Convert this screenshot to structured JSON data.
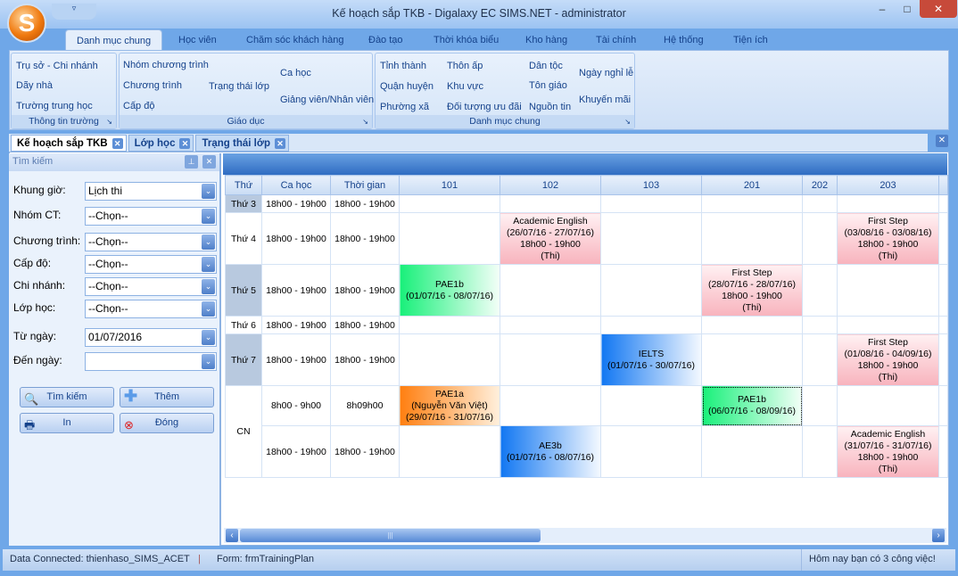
{
  "window": {
    "title": "Kế hoạch sắp TKB - Digalaxy EC SIMS.NET - administrator",
    "logo_letter": "S",
    "qat_icon": "▿",
    "min": "–",
    "max": "□",
    "close": "✕"
  },
  "ribbon_tabs": [
    "Danh mục chung",
    "Học viên",
    "Chăm sóc khách hàng",
    "Đào tạo",
    "Thời khóa biểu",
    "Kho hàng",
    "Tài chính",
    "Hệ thống",
    "Tiện ích"
  ],
  "ribbon_groups": {
    "thong_tin_truong": {
      "label": "Thông tin trường",
      "items": [
        "Trụ sở - Chi nhánh",
        "Dãy nhà",
        "Trường trung học"
      ]
    },
    "giao_duc": {
      "label": "Giáo dục",
      "items": [
        "Nhóm chương trình",
        "Chương trình",
        "Cấp độ",
        "Trạng thái lớp",
        "Ca học",
        "Giảng viên/Nhân viên"
      ]
    },
    "danh_muc_chung": {
      "label": "Danh mục chung",
      "items": [
        "Tỉnh thành",
        "Quận huyện",
        "Phường xã",
        "Thôn ấp",
        "Khu vực",
        "Đối tượng ưu đãi",
        "Dân tộc",
        "Tôn giáo",
        "Nguồn tin",
        "Ngày nghỉ lễ",
        "Khuyến mãi"
      ]
    }
  },
  "doc_tabs": [
    "Kế hoạch sắp TKB",
    "Lớp học",
    "Trạng thái lớp"
  ],
  "search": {
    "title": "Tìm kiếm",
    "fields": [
      {
        "label": "Khung giờ:",
        "value": "Lịch thi"
      },
      {
        "label": "Nhóm CT:",
        "value": "--Chọn--"
      },
      {
        "label": "Chương trình:",
        "value": "--Chọn--"
      },
      {
        "label": "Cấp độ:",
        "value": "--Chọn--"
      },
      {
        "label": "Chi nhánh:",
        "value": "--Chọn--"
      },
      {
        "label": "Lớp học:",
        "value": "--Chọn--"
      },
      {
        "label": "Từ ngày:",
        "value": "01/07/2016"
      },
      {
        "label": "Đến  ngày:",
        "value": ""
      }
    ],
    "buttons": {
      "search": "Tìm kiếm",
      "add": "Thêm",
      "print": "In",
      "close": "Đóng"
    }
  },
  "grid": {
    "columns": [
      "Thứ",
      "Ca học",
      "Thời gian",
      "101",
      "102",
      "103",
      "201",
      "202",
      "203"
    ],
    "rooms": [
      "101",
      "102",
      "103",
      "201",
      "202",
      "203"
    ],
    "rows": [
      {
        "day": "Thứ 3",
        "shade": true,
        "ca": "18h00 - 19h00",
        "time": "18h00 - 19h00",
        "events": {}
      },
      {
        "day": "Thứ 4",
        "shade": false,
        "ca": "18h00 - 19h00",
        "time": "18h00 - 19h00",
        "events": {
          "102": {
            "style": "pink",
            "lines": [
              "Academic English",
              "(26/07/16 - 27/07/16)",
              "18h00 - 19h00",
              "(Thi)"
            ]
          },
          "203": {
            "style": "pink",
            "lines": [
              "First Step",
              "(03/08/16 - 03/08/16)",
              "18h00 - 19h00",
              "(Thi)"
            ]
          }
        }
      },
      {
        "day": "Thứ 5",
        "shade": true,
        "ca": "18h00 - 19h00",
        "time": "18h00 - 19h00",
        "events": {
          "101": {
            "style": "green",
            "lines": [
              "PAE1b",
              "(01/07/16 - 08/07/16)"
            ]
          },
          "201": {
            "style": "pink",
            "lines": [
              "First Step",
              "(28/07/16 - 28/07/16)",
              "18h00 - 19h00",
              "(Thi)"
            ]
          }
        }
      },
      {
        "day": "Thứ 6",
        "shade": false,
        "ca": "18h00 - 19h00",
        "time": "18h00 - 19h00",
        "events": {}
      },
      {
        "day": "Thứ 7",
        "shade": true,
        "ca": "18h00 - 19h00",
        "time": "18h00 - 19h00",
        "events": {
          "103": {
            "style": "blue",
            "lines": [
              "IELTS",
              "(01/07/16 - 30/07/16)"
            ]
          },
          "203": {
            "style": "pink",
            "lines": [
              "First Step",
              "(01/08/16 - 04/09/16)",
              "18h00 - 19h00",
              "(Thi)"
            ]
          }
        }
      },
      {
        "day": "CN",
        "shade": false,
        "span": 2,
        "ca": "8h00 - 9h00",
        "time": "8h09h00",
        "events": {
          "101": {
            "style": "orange",
            "lines": [
              "PAE1a",
              "(Nguyễn Văn Việt)",
              "(29/07/16 - 31/07/16)"
            ]
          },
          "201": {
            "style": "green",
            "selected": true,
            "lines": [
              "PAE1b",
              "(06/07/16 - 08/09/16)"
            ]
          }
        }
      },
      {
        "day": null,
        "ca": "18h00 - 19h00",
        "time": "18h00 - 19h00",
        "events": {
          "102": {
            "style": "blue",
            "lines": [
              "AE3b",
              "(01/07/16 - 08/07/16)"
            ]
          },
          "203": {
            "style": "pink",
            "lines": [
              "Academic English",
              "(31/07/16 - 31/07/16)",
              "18h00 - 19h00",
              "(Thi)"
            ]
          }
        }
      }
    ]
  },
  "status": {
    "connection": "Data Connected: thienhaso_SIMS_ACET",
    "separator": "|",
    "form": "Form: frmTrainingPlan",
    "tasks": "Hôm nay bạn có 3 công việc!"
  }
}
